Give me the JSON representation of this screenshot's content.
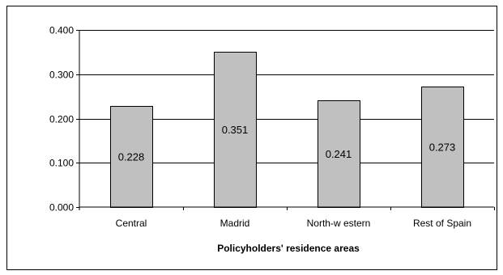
{
  "chart_data": {
    "type": "bar",
    "title": "",
    "xlabel": "Policyholders' residence areas",
    "ylabel": "",
    "categories": [
      "Central",
      "Madrid",
      "North-w estern",
      "Rest of Spain"
    ],
    "values": [
      0.228,
      0.351,
      0.241,
      0.273
    ],
    "data_labels": [
      "0.228",
      "0.351",
      "0.241",
      "0.273"
    ],
    "ylim": [
      0,
      0.4
    ],
    "yticks": [
      0,
      0.1,
      0.2,
      0.3,
      0.4
    ],
    "ytick_labels": [
      "0.000",
      "0.100",
      "0.200",
      "0.300",
      "0.400"
    ],
    "grid": true,
    "legend": "none",
    "colors": {
      "bar_fill": "#c0c0c0",
      "bar_stroke": "#000000",
      "grid": "#000000"
    }
  }
}
